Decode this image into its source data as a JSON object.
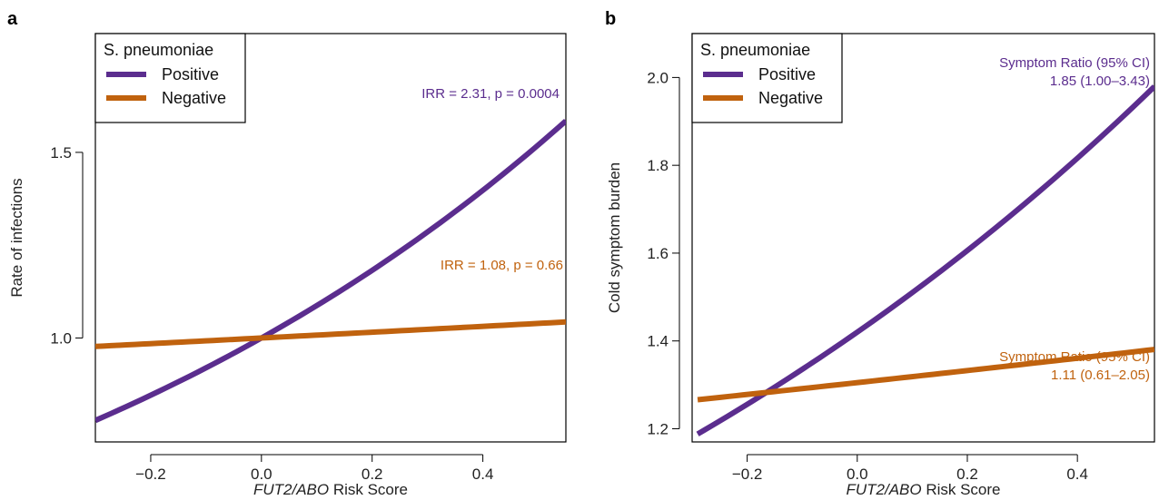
{
  "chart_data": [
    {
      "panel_label": "a",
      "type": "line",
      "xlabel_italic": "FUT2/ABO",
      "xlabel_rest": " Risk Score",
      "ylabel": "Rate of infections",
      "xlim": [
        -0.3,
        0.55
      ],
      "ylim": [
        0.72,
        1.82
      ],
      "xticks": [
        -0.2,
        0.0,
        0.2,
        0.4
      ],
      "xtick_labels": [
        "−0.2",
        "0.0",
        "0.2",
        "0.4"
      ],
      "yticks": [
        1.0,
        1.5
      ],
      "ytick_labels": [
        "1.0",
        "1.5"
      ],
      "legend": {
        "title": "S. pneumoniae",
        "position": "top-left"
      },
      "series": [
        {
          "name": "Positive",
          "color": "#5b2d8e",
          "curve": "exp",
          "base": 1.0,
          "rate": 2.31,
          "x_range": [
            -0.3,
            0.55
          ]
        },
        {
          "name": "Negative",
          "color": "#c0620e",
          "curve": "exp",
          "base": 1.0,
          "rate": 1.08,
          "x_range": [
            -0.3,
            0.55
          ]
        }
      ],
      "annotations": [
        {
          "lines": [
            "IRR = 2.31, p = 0.0004"
          ],
          "color": "#5b2d8e"
        },
        {
          "lines": [
            "IRR = 1.08, p = 0.66"
          ],
          "color": "#c0620e"
        }
      ]
    },
    {
      "panel_label": "b",
      "type": "line",
      "xlabel_italic": "FUT2/ABO",
      "xlabel_rest": " Risk Score",
      "ylabel": "Cold symptom burden",
      "xlim": [
        -0.3,
        0.54
      ],
      "ylim": [
        1.17,
        2.1
      ],
      "xticks": [
        -0.2,
        0.0,
        0.2,
        0.4
      ],
      "xtick_labels": [
        "−0.2",
        "0.0",
        "0.2",
        "0.4"
      ],
      "yticks": [
        1.2,
        1.4,
        1.6,
        1.8,
        2.0
      ],
      "ytick_labels": [
        "1.2",
        "1.4",
        "1.6",
        "1.8",
        "2.0"
      ],
      "legend": {
        "title": "S. pneumoniae",
        "position": "top-left"
      },
      "series": [
        {
          "name": "Positive",
          "color": "#5b2d8e",
          "curve": "exp",
          "base": 1.42,
          "rate": 1.85,
          "x_range": [
            -0.29,
            0.54
          ]
        },
        {
          "name": "Negative",
          "color": "#c0620e",
          "curve": "exp",
          "base": 1.305,
          "rate": 1.11,
          "x_range": [
            -0.29,
            0.54
          ]
        }
      ],
      "annotations": [
        {
          "lines": [
            "Symptom Ratio (95% CI)",
            "1.85 (1.00–3.43)"
          ],
          "color": "#5b2d8e"
        },
        {
          "lines": [
            "Symptom Ratio (95% CI)",
            "1.11 (0.61–2.05)"
          ],
          "color": "#c0620e"
        }
      ]
    }
  ]
}
